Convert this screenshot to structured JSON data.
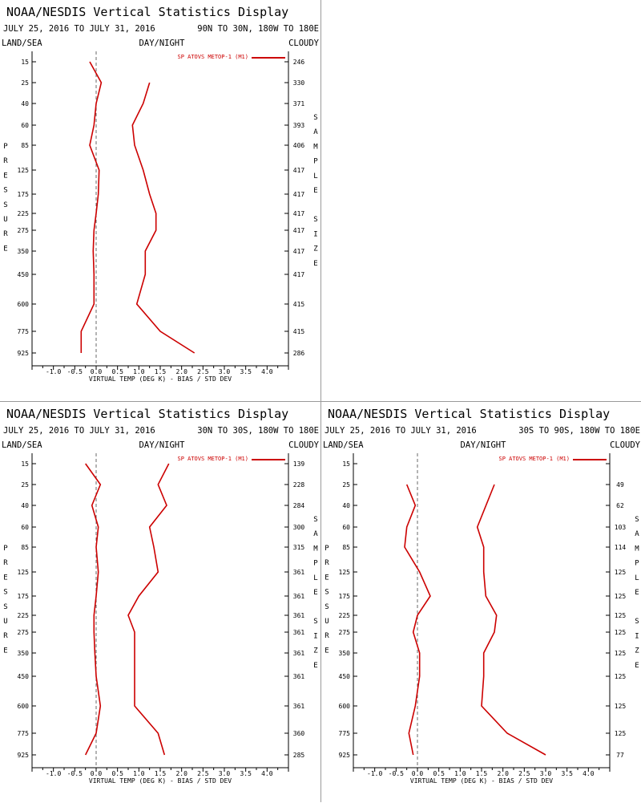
{
  "common": {
    "title": "NOAA/NESDIS Vertical Statistics Display",
    "date_range": "JULY 25, 2016 TO JULY 31, 2016",
    "land_sea": "LAND/SEA",
    "day_night": "DAY/NIGHT",
    "cloudy": "CLOUDY",
    "legend": "SP ATOVS METOP-1 (M1)",
    "pressure_word": "PRESSURE",
    "sample_size_word": "SAMPLE SIZE",
    "line_color": "#cc0000"
  },
  "chart_data": [
    {
      "type": "line",
      "region": "90N TO 30N, 180W TO 180E",
      "xlabel": "VIRTUAL TEMP (DEG K) - BIAS / STD DEV",
      "xlim": [
        -1.5,
        4.5
      ],
      "xticks": [
        "-1.0",
        "-0.5",
        "0.0",
        "0.5",
        "1.0",
        "1.5",
        "2.0",
        "2.5",
        "3.0",
        "3.5",
        "4.0"
      ],
      "pressure_levels": [
        "15",
        "25",
        "40",
        "60",
        "85",
        "125",
        "175",
        "225",
        "275",
        "350",
        "450",
        "600",
        "775",
        "925"
      ],
      "sample_size": [
        "246",
        "330",
        "371",
        "393",
        "406",
        "417",
        "417",
        "417",
        "417",
        "417",
        "417",
        "415",
        "415",
        "286"
      ],
      "series": [
        {
          "values": [
            -0.15,
            0.12,
            0.0,
            -0.05,
            -0.15,
            0.07,
            0.05,
            0.0,
            -0.05,
            -0.07,
            -0.05,
            -0.05,
            -0.35,
            -0.35
          ]
        },
        {
          "values": [
            null,
            1.25,
            1.1,
            0.85,
            0.9,
            1.1,
            1.25,
            1.4,
            1.4,
            1.15,
            1.15,
            0.95,
            1.5,
            2.3
          ]
        }
      ]
    },
    {
      "type": "line",
      "region": "30N TO 30S, 180W TO 180E",
      "xlabel": "VIRTUAL TEMP (DEG K) - BIAS / STD DEV",
      "xlim": [
        -1.5,
        4.5
      ],
      "xticks": [
        "-1.0",
        "-0.5",
        "0.0",
        "0.5",
        "1.0",
        "1.5",
        "2.0",
        "2.5",
        "3.0",
        "3.5",
        "4.0"
      ],
      "pressure_levels": [
        "15",
        "25",
        "40",
        "60",
        "85",
        "125",
        "175",
        "225",
        "275",
        "350",
        "450",
        "600",
        "775",
        "925"
      ],
      "sample_size": [
        "139",
        "228",
        "284",
        "300",
        "315",
        "361",
        "361",
        "361",
        "361",
        "361",
        "361",
        "361",
        "360",
        "285"
      ],
      "series": [
        {
          "values": [
            -0.25,
            0.1,
            -0.1,
            0.05,
            0.0,
            0.05,
            0.0,
            -0.05,
            -0.05,
            -0.03,
            0.0,
            0.1,
            0.0,
            -0.25
          ]
        },
        {
          "values": [
            1.7,
            1.45,
            1.65,
            1.25,
            1.35,
            1.45,
            1.0,
            0.75,
            0.9,
            0.9,
            0.9,
            0.9,
            1.45,
            1.6
          ]
        }
      ]
    },
    {
      "type": "line",
      "region": "30S TO 90S, 180W TO 180E",
      "xlabel": "VIRTUAL TEMP (DEG K) - BIAS / STD DEV",
      "xlim": [
        -1.5,
        4.5
      ],
      "xticks": [
        "-1.0",
        "-0.5",
        "0.0",
        "0.5",
        "1.0",
        "1.5",
        "2.0",
        "2.5",
        "3.0",
        "3.5",
        "4.0"
      ],
      "pressure_levels": [
        "15",
        "25",
        "40",
        "60",
        "85",
        "125",
        "175",
        "225",
        "275",
        "350",
        "450",
        "600",
        "775",
        "925"
      ],
      "sample_size": [
        "",
        "49",
        "62",
        "103",
        "114",
        "125",
        "125",
        "125",
        "125",
        "125",
        "125",
        "125",
        "125",
        "77"
      ],
      "series": [
        {
          "values": [
            null,
            -0.25,
            -0.05,
            -0.25,
            -0.3,
            0.05,
            0.3,
            0.0,
            -0.1,
            0.05,
            0.05,
            -0.05,
            -0.2,
            -0.1
          ]
        },
        {
          "values": [
            null,
            1.8,
            null,
            1.4,
            1.55,
            1.55,
            1.6,
            1.85,
            1.8,
            1.55,
            1.55,
            1.5,
            2.1,
            3.0
          ]
        }
      ]
    }
  ]
}
